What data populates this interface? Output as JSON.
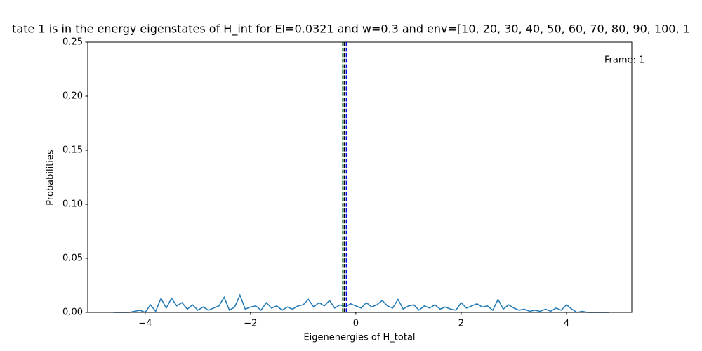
{
  "chart_data": {
    "type": "line",
    "title": "tate 1 is in the energy eigenstates of H_int for EI=0.0321 and w=0.3 and env=[10, 20, 30, 40, 50, 60, 70, 80, 90, 100, 1",
    "xlabel": "Eigenenergies of H_total",
    "ylabel": "Probabilities",
    "annotation": "Frame: 1",
    "xlim": [
      -5.09,
      5.24
    ],
    "ylim": [
      0,
      0.25
    ],
    "xticks": [
      {
        "value": -4,
        "label": "−4"
      },
      {
        "value": -2,
        "label": "−2"
      },
      0,
      2,
      4
    ],
    "yticks": [
      {
        "value": 0,
        "label": "0.00"
      },
      {
        "value": 0.05,
        "label": "0.05"
      },
      {
        "value": 0.1,
        "label": "0.10"
      },
      {
        "value": 0.15,
        "label": "0.15"
      },
      {
        "value": 0.2,
        "label": "0.20"
      },
      {
        "value": 0.25,
        "label": "0.25"
      }
    ],
    "vlines": [
      {
        "x": -0.25,
        "color": "#008000"
      },
      {
        "x": -0.22,
        "color": "#000000"
      },
      {
        "x": -0.18,
        "color": "#0000ff"
      }
    ],
    "series": [
      {
        "color": "#1f77b4",
        "x": [
          -4.6,
          -4.5,
          -4.4,
          -4.3,
          -4.2,
          -4.1,
          -4.0,
          -3.9,
          -3.8,
          -3.7,
          -3.6,
          -3.5,
          -3.4,
          -3.3,
          -3.2,
          -3.1,
          -3.0,
          -2.9,
          -2.8,
          -2.7,
          -2.6,
          -2.5,
          -2.4,
          -2.3,
          -2.2,
          -2.1,
          -2.0,
          -1.9,
          -1.8,
          -1.7,
          -1.6,
          -1.5,
          -1.4,
          -1.3,
          -1.2,
          -1.1,
          -1.0,
          -0.9,
          -0.8,
          -0.7,
          -0.6,
          -0.5,
          -0.4,
          -0.3,
          -0.2,
          -0.1,
          0,
          0.1,
          0.2,
          0.3,
          0.4,
          0.5,
          0.6,
          0.7,
          0.8,
          0.9,
          1.0,
          1.1,
          1.2,
          1.3,
          1.4,
          1.5,
          1.6,
          1.7,
          1.8,
          1.9,
          2.0,
          2.1,
          2.2,
          2.3,
          2.4,
          2.5,
          2.6,
          2.7,
          2.8,
          2.9,
          3.0,
          3.1,
          3.2,
          3.3,
          3.4,
          3.5,
          3.6,
          3.7,
          3.8,
          3.9,
          4.0,
          4.1,
          4.2,
          4.3,
          4.4,
          4.5,
          4.6,
          4.7,
          4.8
        ],
        "values": [
          0,
          0,
          0,
          0,
          0.001,
          0.002,
          0,
          0.007,
          0.001,
          0.013,
          0.004,
          0.013,
          0.006,
          0.009,
          0.003,
          0.007,
          0.002,
          0.005,
          0.002,
          0.004,
          0.006,
          0.014,
          0.002,
          0.005,
          0.016,
          0.003,
          0.005,
          0.006,
          0.002,
          0.009,
          0.004,
          0.006,
          0.002,
          0.005,
          0.003,
          0.006,
          0.007,
          0.012,
          0.005,
          0.009,
          0.006,
          0.011,
          0.004,
          0.007,
          0.005,
          0.008,
          0.006,
          0.004,
          0.009,
          0.005,
          0.007,
          0.011,
          0.006,
          0.004,
          0.012,
          0.003,
          0.006,
          0.007,
          0.002,
          0.006,
          0.004,
          0.007,
          0.003,
          0.005,
          0.003,
          0.002,
          0.009,
          0.004,
          0.006,
          0.008,
          0.005,
          0.006,
          0.002,
          0.012,
          0.003,
          0.007,
          0.004,
          0.002,
          0.003,
          0.001,
          0.002,
          0.001,
          0.003,
          0.001,
          0.004,
          0.002,
          0.007,
          0.003,
          0,
          0.001,
          0,
          0,
          0,
          0,
          0
        ]
      }
    ]
  }
}
